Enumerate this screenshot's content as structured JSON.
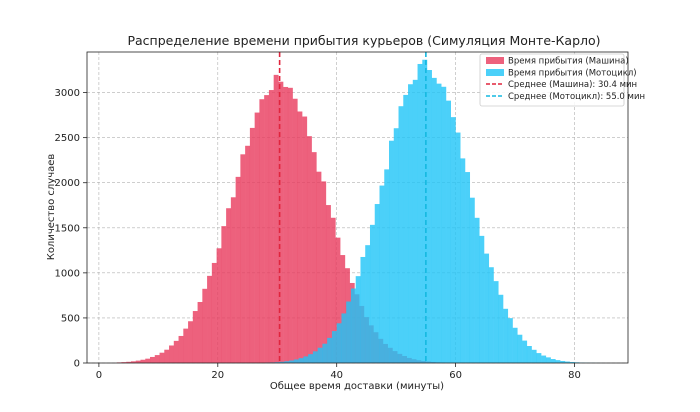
{
  "chart_data": {
    "type": "histogram",
    "title": "Распределение времени прибытия курьеров (Симуляция Монте-Карло)",
    "xlabel": "Общее время доставки (минуты)",
    "ylabel": "Количество случаев",
    "xlim": [
      -2,
      89
    ],
    "ylim": [
      0,
      3450
    ],
    "x_ticks": [
      0,
      20,
      40,
      60,
      80
    ],
    "y_ticks": [
      0,
      500,
      1000,
      1500,
      2000,
      2500,
      3000
    ],
    "grid": true,
    "legend_position": "top-right",
    "bin_width": 0.8,
    "series": [
      {
        "name": "Время прибытия (Машина)",
        "color": "#e8395d",
        "alpha": 0.8,
        "distribution": "normal",
        "mean": 30.4,
        "std": 7.7,
        "range": [
          3.0,
          58.0
        ],
        "peak_count": 3130
      },
      {
        "name": "Время прибытия (Мотоцикл)",
        "color": "#1ec4f8",
        "alpha": 0.8,
        "distribution": "normal",
        "mean": 55.0,
        "std": 7.3,
        "range": [
          28.0,
          85.0
        ],
        "peak_count": 3300
      }
    ],
    "mean_lines": [
      {
        "label": "Среднее (Машина): 30.4 мин",
        "x": 30.4,
        "color": "#e0253d",
        "style": "dashed"
      },
      {
        "label": "Среднее (Мотоцикл): 55.0 мин",
        "x": 55.0,
        "color": "#14b8e0",
        "style": "dashed"
      }
    ]
  }
}
